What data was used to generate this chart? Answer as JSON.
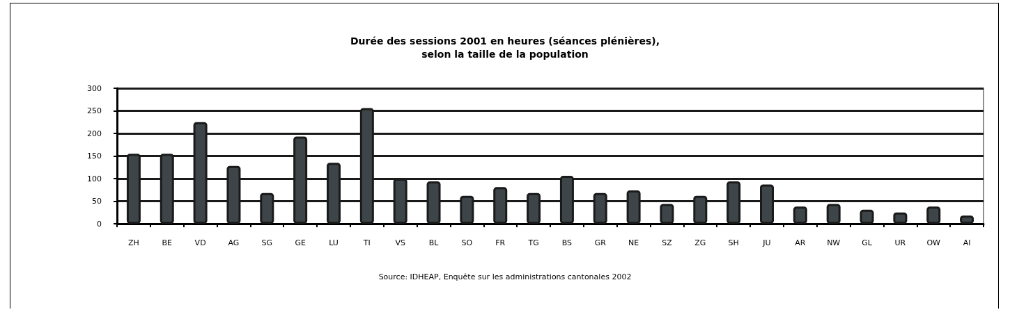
{
  "chart_data": {
    "type": "bar",
    "title": "Durée des sessions 2001 en heures (séances plénières),\nselon la taille de la population",
    "categories": [
      "ZH",
      "BE",
      "VD",
      "AG",
      "SG",
      "GE",
      "LU",
      "TI",
      "VS",
      "BL",
      "SO",
      "FR",
      "TG",
      "BS",
      "GR",
      "NE",
      "SZ",
      "ZG",
      "SH",
      "JU",
      "AR",
      "NW",
      "GL",
      "UR",
      "OW",
      "AI"
    ],
    "values": [
      155,
      155,
      225,
      128,
      68,
      193,
      135,
      256,
      100,
      94,
      62,
      81,
      68,
      106,
      68,
      74,
      44,
      62,
      94,
      87,
      38,
      44,
      31,
      25,
      38,
      18
    ],
    "color": "#3d4548",
    "ylim": [
      0,
      300
    ],
    "yticks": [
      0,
      50,
      100,
      150,
      200,
      250,
      300
    ],
    "grid": true,
    "annotations": [
      "Source: IDHEAP, Enquête sur les administrations cantonales 2002"
    ]
  }
}
